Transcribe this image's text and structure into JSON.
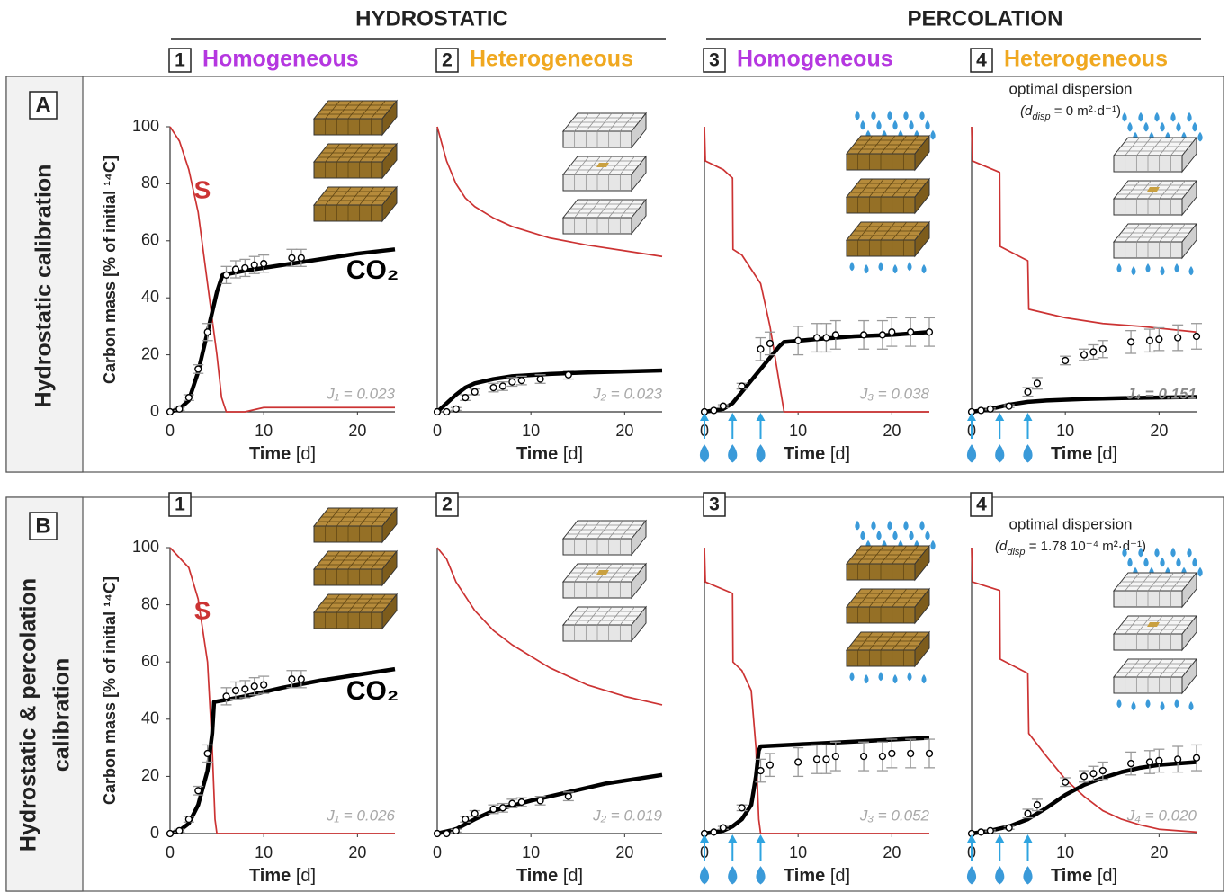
{
  "headers": {
    "hydrostatic": "HYDROSTATIC",
    "percolation": "PERCOLATION"
  },
  "rows": [
    {
      "letter": "A",
      "label": [
        "Hydrostatic calibration"
      ]
    },
    {
      "letter": "B",
      "label": [
        "Hydrostatic & percolation",
        "calibration"
      ]
    }
  ],
  "chart_data": [
    {
      "type": "line",
      "panel_number": "1",
      "panel_label": "Homogeneous",
      "label_color": "#b537e0",
      "y_label": "Carbon mass [% of initial ¹⁴C]",
      "x_label": "Time [d]",
      "xlim": [
        0,
        24
      ],
      "ylim": [
        0,
        100
      ],
      "xticks": [
        0,
        10,
        20
      ],
      "yticks": [
        0,
        20,
        40,
        60,
        80,
        100
      ],
      "fit_label": "J₁ = 0.023",
      "series": [
        {
          "name": "S",
          "type": "line",
          "color": "#cc3333",
          "x": [
            0,
            1,
            2,
            3,
            4,
            5,
            5.5,
            6,
            8,
            10,
            24
          ],
          "values": [
            100,
            95,
            85,
            70,
            45,
            20,
            5,
            0,
            0,
            1.5,
            1.5
          ]
        },
        {
          "name": "CO₂",
          "type": "line",
          "color": "#000000",
          "x": [
            0,
            1,
            2,
            3,
            4,
            5,
            5.6,
            8,
            12,
            16,
            20,
            24
          ],
          "values": [
            0,
            1,
            4,
            14,
            28,
            42,
            48,
            49.5,
            51.5,
            53.5,
            55.5,
            57
          ]
        },
        {
          "type": "scatter",
          "color": "#000000",
          "error_color": "#999999",
          "x": [
            0,
            1,
            2,
            3,
            4,
            6,
            7,
            8,
            9,
            10,
            13,
            14
          ],
          "values": [
            0,
            1,
            5,
            15,
            28,
            48,
            50,
            50.5,
            51.5,
            52,
            54,
            54
          ],
          "error": [
            0,
            0.5,
            1,
            1.5,
            3,
            3,
            3,
            3,
            3,
            3,
            3,
            3
          ]
        }
      ]
    },
    {
      "type": "line",
      "panel_number": "2",
      "panel_label": "Heterogeneous",
      "label_color": "#f0a820",
      "x_label": "Time [d]",
      "xlim": [
        0,
        24
      ],
      "ylim": [
        0,
        100
      ],
      "xticks": [
        0,
        10,
        20
      ],
      "fit_label": "J₂ = 0.023",
      "series": [
        {
          "type": "line",
          "color": "#cc3333",
          "x": [
            0,
            1,
            2,
            3,
            4,
            6,
            8,
            12,
            16,
            20,
            24
          ],
          "values": [
            100,
            88,
            80,
            75,
            72,
            68,
            65,
            61,
            58.5,
            56.5,
            54.5
          ]
        },
        {
          "type": "line",
          "color": "#000000",
          "x": [
            0,
            1,
            2,
            3,
            4,
            6,
            8,
            12,
            16,
            24
          ],
          "values": [
            0,
            3,
            6,
            8.5,
            10,
            11.5,
            12.5,
            13.3,
            13.8,
            14.5
          ]
        },
        {
          "type": "scatter",
          "color": "#000000",
          "error_color": "#999999",
          "x": [
            0,
            1,
            2,
            3,
            4,
            6,
            7,
            8,
            9,
            11,
            14
          ],
          "values": [
            0,
            0,
            1,
            5,
            7,
            8.5,
            9,
            10.5,
            11,
            11.5,
            13
          ],
          "error": [
            0,
            0,
            0.5,
            1,
            1,
            1.5,
            1.5,
            1.5,
            1.5,
            1.5,
            1.5
          ]
        }
      ]
    },
    {
      "type": "line",
      "panel_number": "3",
      "panel_label": "Homogeneous",
      "label_color": "#b537e0",
      "x_label": "Time [d]",
      "xlim": [
        0,
        24
      ],
      "ylim": [
        0,
        100
      ],
      "xticks": [
        0,
        10,
        20
      ],
      "fit_label": "J₃ = 0.038",
      "pulses": [
        0,
        3,
        6
      ],
      "series": [
        {
          "type": "line",
          "color": "#cc3333",
          "x": [
            0,
            0.1,
            2,
            3,
            3.05,
            4,
            5,
            6,
            7,
            8,
            8.5,
            24
          ],
          "values": [
            100,
            88,
            85,
            82,
            57,
            55,
            50,
            45,
            30,
            10,
            0,
            0
          ]
        },
        {
          "type": "line",
          "color": "#000000",
          "x": [
            0,
            2,
            3,
            4,
            5,
            6,
            7,
            8,
            8.5,
            12,
            16,
            20,
            24
          ],
          "values": [
            0,
            1,
            3,
            7,
            11,
            15,
            19,
            23,
            24.5,
            25.5,
            26.5,
            27,
            28
          ]
        },
        {
          "type": "scatter",
          "color": "#000000",
          "error_color": "#999999",
          "x": [
            0,
            1,
            2,
            4,
            6,
            7,
            10,
            12,
            13,
            14,
            17,
            19,
            20,
            22,
            24
          ],
          "values": [
            0,
            0.5,
            2,
            9,
            22,
            24,
            25,
            26,
            26,
            27,
            27,
            27,
            28,
            28,
            28
          ],
          "error": [
            0,
            0,
            0.5,
            1,
            4,
            4,
            5,
            5,
            5,
            5,
            5,
            5,
            5,
            5,
            5
          ]
        }
      ]
    },
    {
      "type": "line",
      "panel_number": "4",
      "panel_label": "Heterogeneous",
      "label_color": "#f0a820",
      "x_label": "Time [d]",
      "xlim": [
        0,
        24
      ],
      "ylim": [
        0,
        100
      ],
      "xticks": [
        0,
        10,
        20
      ],
      "fit_label": "J₄ = 0.151",
      "fit_bold": true,
      "pulses": [
        0,
        3,
        6
      ],
      "dispersion": {
        "title": "optimal dispersion",
        "prefix": "(d",
        "sub": "disp",
        "rest": " = 0 m²·d⁻¹)"
      },
      "series": [
        {
          "type": "line",
          "color": "#cc3333",
          "x": [
            0,
            0.1,
            3,
            3.05,
            6,
            6.1,
            10,
            14,
            18,
            24
          ],
          "values": [
            100,
            88,
            84,
            58,
            53,
            36,
            33,
            31,
            30,
            28
          ]
        },
        {
          "type": "line",
          "color": "#000000",
          "x": [
            0,
            2,
            4,
            6,
            8,
            12,
            16,
            24
          ],
          "values": [
            0,
            1,
            2.5,
            3.5,
            4,
            4.5,
            4.8,
            5.2
          ]
        },
        {
          "type": "scatter",
          "color": "#000000",
          "error_color": "#999999",
          "x": [
            0,
            1,
            2,
            4,
            6,
            7,
            10,
            12,
            13,
            14,
            17,
            19,
            20,
            22,
            24
          ],
          "values": [
            0,
            0.5,
            1,
            2,
            7,
            10,
            18,
            20,
            21,
            22,
            24.5,
            25,
            25.5,
            26,
            26.5
          ],
          "error": [
            0,
            0,
            0.3,
            0.5,
            1.5,
            2,
            1.5,
            2,
            2.5,
            3,
            4,
            4,
            4,
            4.5,
            4.5
          ]
        }
      ]
    },
    {
      "type": "line",
      "panel_number": "1",
      "y_label": "Carbon mass [% of initial ¹⁴C]",
      "x_label": "Time [d]",
      "xlim": [
        0,
        24
      ],
      "ylim": [
        0,
        100
      ],
      "xticks": [
        0,
        10,
        20
      ],
      "yticks": [
        0,
        20,
        40,
        60,
        80,
        100
      ],
      "fit_label": "J₁ = 0.026",
      "series": [
        {
          "name": "S",
          "type": "line",
          "color": "#cc3333",
          "x": [
            0,
            2,
            3,
            4,
            4.5,
            4.8,
            5,
            24
          ],
          "values": [
            100,
            93,
            82,
            60,
            30,
            5,
            0,
            0
          ]
        },
        {
          "name": "CO₂",
          "type": "line",
          "color": "#000000",
          "x": [
            0,
            1,
            2,
            3,
            4,
            4.5,
            4.7,
            8,
            12,
            16,
            20,
            24
          ],
          "values": [
            0,
            1,
            3.5,
            10,
            22,
            35,
            46,
            48,
            51,
            53.5,
            55.5,
            57.5
          ]
        },
        {
          "type": "scatter",
          "color": "#000000",
          "error_color": "#999999",
          "x": [
            0,
            1,
            2,
            3,
            4,
            6,
            7,
            8,
            9,
            10,
            13,
            14
          ],
          "values": [
            0,
            1,
            5,
            15,
            28,
            48,
            50,
            50.5,
            51.5,
            52,
            54,
            54
          ],
          "error": [
            0,
            0.5,
            1,
            1.5,
            3,
            3,
            3,
            3,
            3,
            3,
            3,
            3
          ]
        }
      ]
    },
    {
      "type": "line",
      "panel_number": "2",
      "x_label": "Time [d]",
      "xlim": [
        0,
        24
      ],
      "ylim": [
        0,
        100
      ],
      "xticks": [
        0,
        10,
        20
      ],
      "fit_label": "J₂ = 0.019",
      "series": [
        {
          "type": "line",
          "color": "#cc3333",
          "x": [
            0,
            1,
            2,
            4,
            6,
            8,
            12,
            16,
            20,
            24
          ],
          "values": [
            100,
            96,
            88,
            78,
            71,
            66,
            58,
            52,
            48,
            45
          ]
        },
        {
          "type": "line",
          "color": "#000000",
          "x": [
            0,
            2,
            4,
            6,
            10,
            14,
            18,
            24
          ],
          "values": [
            0,
            1.5,
            5,
            8,
            11.5,
            14.5,
            17.5,
            20.5
          ]
        },
        {
          "type": "scatter",
          "color": "#000000",
          "error_color": "#999999",
          "x": [
            0,
            1,
            2,
            3,
            4,
            6,
            7,
            8,
            9,
            11,
            14
          ],
          "values": [
            0,
            0,
            1,
            5,
            7,
            8.5,
            9,
            10.5,
            11,
            11.5,
            13
          ],
          "error": [
            0,
            0,
            0.5,
            1,
            1,
            1.5,
            1.5,
            1.5,
            1.5,
            1.5,
            1.5
          ]
        }
      ]
    },
    {
      "type": "line",
      "panel_number": "3",
      "x_label": "Time [d]",
      "xlim": [
        0,
        24
      ],
      "ylim": [
        0,
        100
      ],
      "xticks": [
        0,
        10,
        20
      ],
      "fit_label": "J₃ = 0.052",
      "pulses": [
        0,
        3,
        6
      ],
      "series": [
        {
          "type": "line",
          "color": "#cc3333",
          "x": [
            0,
            0.1,
            3,
            3.05,
            4,
            5,
            5.5,
            5.8,
            6,
            24
          ],
          "values": [
            100,
            88,
            84,
            60,
            57,
            50,
            30,
            5,
            0,
            0
          ]
        },
        {
          "type": "line",
          "color": "#000000",
          "x": [
            0,
            2,
            3,
            4,
            5,
            5.5,
            5.8,
            6,
            12,
            18,
            24
          ],
          "values": [
            0,
            1,
            2.5,
            5,
            10,
            20,
            29,
            30.5,
            31.5,
            32.5,
            33.5
          ]
        },
        {
          "type": "scatter",
          "color": "#000000",
          "error_color": "#999999",
          "x": [
            0,
            1,
            2,
            4,
            6,
            7,
            10,
            12,
            13,
            14,
            17,
            19,
            20,
            22,
            24
          ],
          "values": [
            0,
            0.5,
            2,
            9,
            22,
            24,
            25,
            26,
            26,
            27,
            27,
            27,
            28,
            28,
            28
          ],
          "error": [
            0,
            0,
            0.5,
            1,
            4,
            4,
            5,
            5,
            5,
            5,
            5,
            5,
            5,
            5,
            5
          ]
        }
      ]
    },
    {
      "type": "line",
      "panel_number": "4",
      "x_label": "Time [d]",
      "xlim": [
        0,
        24
      ],
      "ylim": [
        0,
        100
      ],
      "xticks": [
        0,
        10,
        20
      ],
      "fit_label": "J₄ = 0.020",
      "pulses": [
        0,
        3,
        6
      ],
      "dispersion": {
        "title": "optimal dispersion",
        "prefix": "(d",
        "sub": "disp",
        "rest": " = 1.78 10⁻⁴ m²·d⁻¹)"
      },
      "series": [
        {
          "type": "line",
          "color": "#cc3333",
          "x": [
            0,
            0.1,
            3,
            3.05,
            6,
            6.1,
            8,
            10,
            12,
            14,
            16,
            18,
            20,
            24
          ],
          "values": [
            100,
            88,
            85,
            61,
            56,
            35,
            27,
            19,
            13,
            8,
            5,
            3,
            1.5,
            0.5
          ]
        },
        {
          "type": "line",
          "color": "#000000",
          "x": [
            0,
            2,
            4,
            6,
            8,
            10,
            12,
            14,
            16,
            18,
            20,
            24
          ],
          "values": [
            0,
            1,
            2.5,
            5,
            9,
            13.5,
            17,
            19.5,
            21.5,
            23,
            24,
            25
          ]
        },
        {
          "type": "scatter",
          "color": "#000000",
          "error_color": "#999999",
          "x": [
            0,
            1,
            2,
            4,
            6,
            7,
            10,
            12,
            13,
            14,
            17,
            19,
            20,
            22,
            24
          ],
          "values": [
            0,
            0.5,
            1,
            2,
            7,
            10,
            18,
            20,
            21,
            22,
            24.5,
            25,
            25.5,
            26,
            26.5
          ],
          "error": [
            0,
            0,
            0.3,
            0.5,
            1.5,
            2,
            1.5,
            2,
            2.5,
            3,
            4,
            4,
            4,
            4.5,
            4.5
          ]
        }
      ]
    }
  ]
}
